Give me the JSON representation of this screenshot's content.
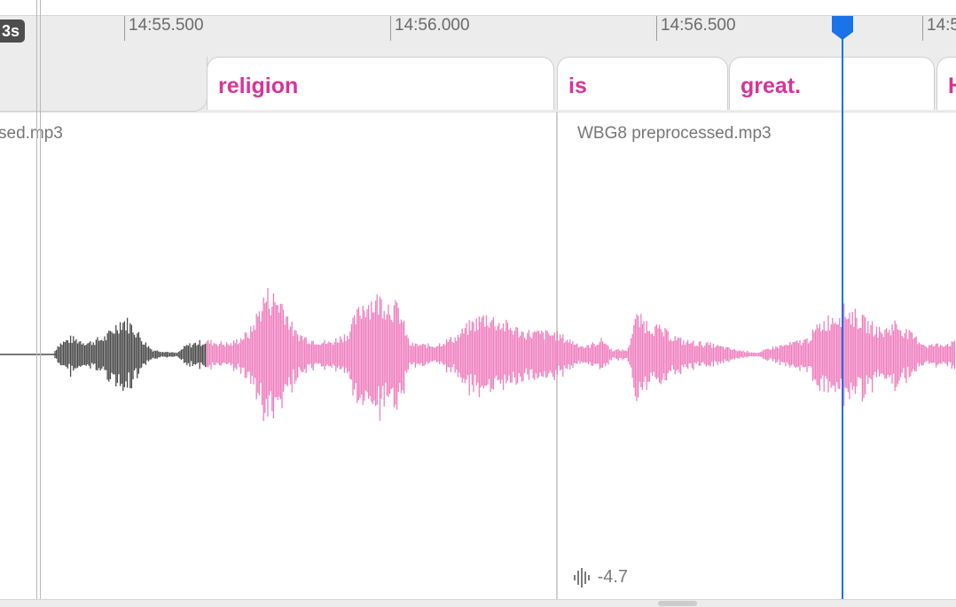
{
  "ruler": {
    "badge": "3s",
    "ticks": [
      "14:55.500",
      "14:56.000",
      "14:56.500",
      "14:5"
    ]
  },
  "words": [
    "religion",
    "is",
    "great.",
    "H"
  ],
  "clips": [
    {
      "label": "sed.mp3"
    },
    {
      "label": "WBG8 preprocessed.mp3"
    }
  ],
  "gain": {
    "value": "-4.7",
    "icon": "waveform-icon"
  },
  "colors": {
    "accent": "#d6349a",
    "waveform_active": "#ef7fbf",
    "waveform_inactive": "#4a4a4a",
    "playhead": "#1a73e8"
  }
}
